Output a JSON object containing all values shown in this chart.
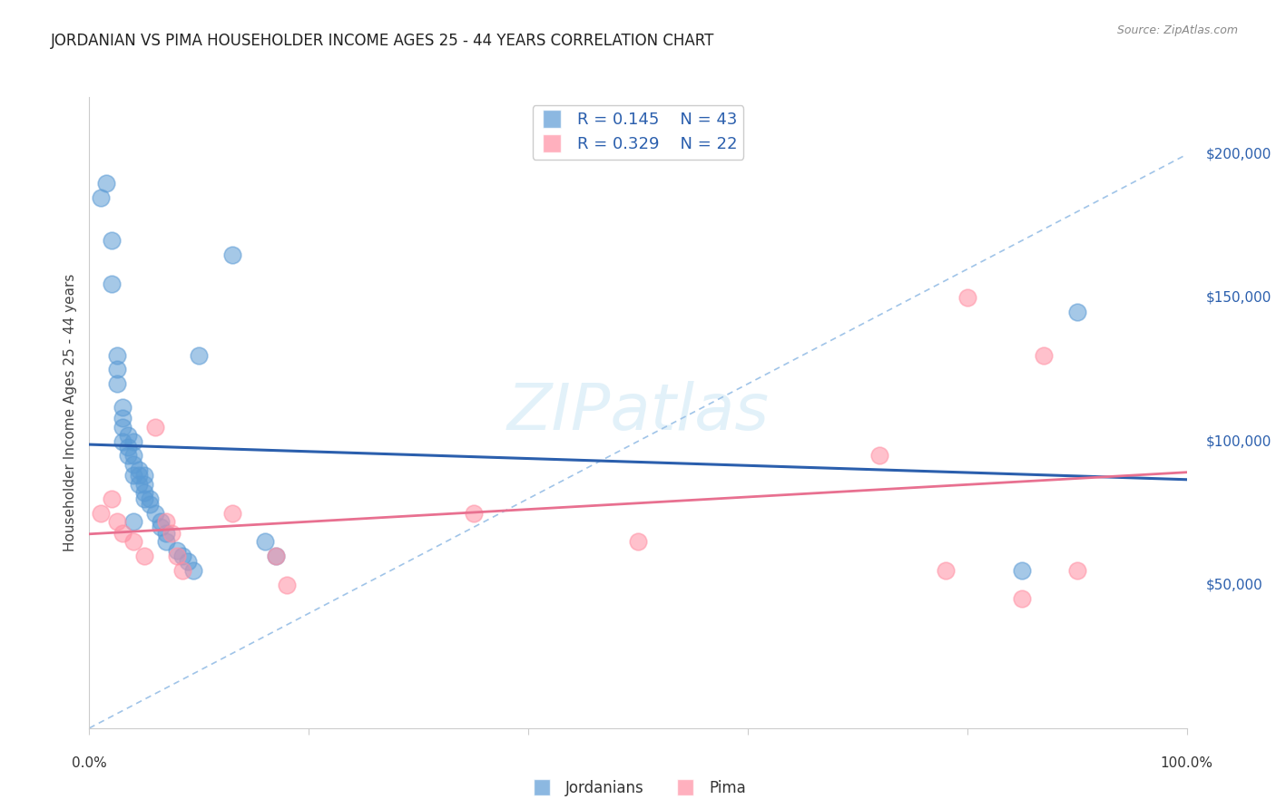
{
  "title": "JORDANIAN VS PIMA HOUSEHOLDER INCOME AGES 25 - 44 YEARS CORRELATION CHART",
  "source": "Source: ZipAtlas.com",
  "ylabel": "Householder Income Ages 25 - 44 years",
  "xlim": [
    0.0,
    1.0
  ],
  "ylim": [
    0,
    220000
  ],
  "yticks": [
    0,
    50000,
    100000,
    150000,
    200000
  ],
  "ytick_labels": [
    "",
    "$50,000",
    "$100,000",
    "$150,000",
    "$200,000"
  ],
  "background_color": "#ffffff",
  "legend_r1": "R = 0.145",
  "legend_n1": "N = 43",
  "legend_r2": "R = 0.329",
  "legend_n2": "N = 22",
  "blue_color": "#5b9bd5",
  "pink_color": "#ff8fa3",
  "blue_line_color": "#2b5fad",
  "pink_line_color": "#e87090",
  "dashed_line_color": "#a0c4e8",
  "jordanians_x": [
    0.01,
    0.015,
    0.02,
    0.02,
    0.025,
    0.025,
    0.025,
    0.03,
    0.03,
    0.03,
    0.03,
    0.035,
    0.035,
    0.035,
    0.04,
    0.04,
    0.04,
    0.04,
    0.04,
    0.045,
    0.045,
    0.045,
    0.05,
    0.05,
    0.05,
    0.05,
    0.055,
    0.055,
    0.06,
    0.065,
    0.065,
    0.07,
    0.07,
    0.08,
    0.085,
    0.09,
    0.095,
    0.1,
    0.13,
    0.16,
    0.17,
    0.85,
    0.9
  ],
  "jordanians_y": [
    185000,
    190000,
    170000,
    155000,
    120000,
    125000,
    130000,
    100000,
    105000,
    108000,
    112000,
    95000,
    98000,
    102000,
    88000,
    92000,
    95000,
    100000,
    72000,
    85000,
    88000,
    90000,
    80000,
    82000,
    85000,
    88000,
    78000,
    80000,
    75000,
    70000,
    72000,
    68000,
    65000,
    62000,
    60000,
    58000,
    55000,
    130000,
    165000,
    65000,
    60000,
    55000,
    145000
  ],
  "pima_x": [
    0.01,
    0.02,
    0.025,
    0.03,
    0.04,
    0.05,
    0.06,
    0.07,
    0.075,
    0.08,
    0.085,
    0.13,
    0.17,
    0.18,
    0.35,
    0.5,
    0.72,
    0.78,
    0.8,
    0.85,
    0.87,
    0.9
  ],
  "pima_y": [
    75000,
    80000,
    72000,
    68000,
    65000,
    60000,
    105000,
    72000,
    68000,
    60000,
    55000,
    75000,
    60000,
    50000,
    75000,
    65000,
    95000,
    55000,
    150000,
    45000,
    130000,
    55000
  ]
}
